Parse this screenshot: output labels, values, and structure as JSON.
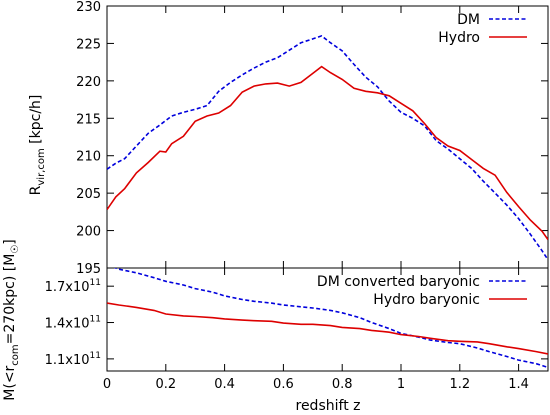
{
  "chart_data": [
    {
      "type": "line",
      "ylabel_main": "R",
      "ylabel_sub": "vir,com",
      "ylabel_unit": " [kpc/h]",
      "xlim": [
        0,
        1.5
      ],
      "ylim": [
        195,
        230
      ],
      "yticks": [
        195,
        200,
        205,
        210,
        215,
        220,
        225,
        230
      ],
      "yticklabels": [
        "195",
        "200",
        "205",
        "210",
        "215",
        "220",
        "225",
        "230"
      ],
      "legend_position": "top-right",
      "series": [
        {
          "name": "DM",
          "color": "#0000dd",
          "dash": "dashed",
          "x": [
            0,
            0.03,
            0.06,
            0.1,
            0.14,
            0.18,
            0.22,
            0.26,
            0.3,
            0.34,
            0.38,
            0.42,
            0.46,
            0.5,
            0.54,
            0.58,
            0.62,
            0.66,
            0.7,
            0.73,
            0.76,
            0.8,
            0.84,
            0.88,
            0.92,
            0.96,
            1.0,
            1.04,
            1.08,
            1.12,
            1.16,
            1.2,
            1.24,
            1.28,
            1.32,
            1.36,
            1.4,
            1.44,
            1.48,
            1.5
          ],
          "y": [
            208.2,
            209,
            209.6,
            211.3,
            213,
            214.1,
            215.3,
            215.8,
            216.2,
            216.7,
            218.6,
            219.8,
            220.8,
            221.7,
            222.5,
            223.1,
            224.1,
            225.1,
            225.6,
            226.0,
            225.1,
            224.0,
            222.2,
            220.5,
            219.2,
            217.3,
            215.8,
            215.0,
            214.0,
            212.0,
            210.9,
            209.6,
            208.3,
            206.6,
            205.0,
            203.4,
            201.6,
            199.5,
            197.3,
            196.1
          ]
        },
        {
          "name": "Hydro",
          "color": "#dd0000",
          "dash": "solid",
          "x": [
            0,
            0.03,
            0.06,
            0.1,
            0.14,
            0.18,
            0.2,
            0.22,
            0.26,
            0.3,
            0.34,
            0.38,
            0.42,
            0.46,
            0.5,
            0.54,
            0.58,
            0.62,
            0.66,
            0.7,
            0.73,
            0.76,
            0.8,
            0.84,
            0.88,
            0.92,
            0.96,
            1.0,
            1.04,
            1.08,
            1.12,
            1.16,
            1.2,
            1.24,
            1.28,
            1.32,
            1.36,
            1.4,
            1.44,
            1.48,
            1.5
          ],
          "y": [
            202.8,
            204.5,
            205.6,
            207.7,
            209.1,
            210.6,
            210.5,
            211.6,
            212.6,
            214.6,
            215.3,
            215.7,
            216.7,
            218.5,
            219.3,
            219.6,
            219.7,
            219.3,
            219.8,
            221.0,
            221.9,
            221.1,
            220.2,
            219.0,
            218.6,
            218.4,
            218.0,
            217.0,
            216.0,
            214.3,
            212.4,
            211.3,
            210.7,
            209.5,
            208.3,
            207.4,
            205.1,
            203.2,
            201.4,
            199.9,
            198.8
          ]
        }
      ]
    },
    {
      "type": "line",
      "ylabel_parts": [
        "M(<r",
        "com",
        "=270kpc) [M",
        "☉",
        "]"
      ],
      "xlabel": "redshift z",
      "xlim": [
        0,
        1.5
      ],
      "xticks": [
        0,
        0.2,
        0.4,
        0.6,
        0.8,
        1.0,
        1.2,
        1.4
      ],
      "xticklabels": [
        "0",
        "0.2",
        "0.4",
        "0.6",
        "0.8",
        "1",
        "1.2",
        "1.4"
      ],
      "ylim": [
        100000000000.0,
        185000000000.0
      ],
      "yticks": [
        110000000000.0,
        140000000000.0,
        170000000000.0
      ],
      "yticklabels_mantissa": [
        "1.1x10",
        "1.4x10",
        "1.7x10"
      ],
      "yticklabels_exponent": [
        "11",
        "11",
        "11"
      ],
      "legend_position": "top-right",
      "series": [
        {
          "name": "DM converted baryonic",
          "color": "#0000dd",
          "dash": "dashed",
          "x": [
            0,
            0.04,
            0.1,
            0.16,
            0.2,
            0.26,
            0.3,
            0.36,
            0.4,
            0.46,
            0.5,
            0.56,
            0.6,
            0.66,
            0.7,
            0.76,
            0.8,
            0.86,
            0.9,
            0.96,
            1.0,
            1.06,
            1.1,
            1.16,
            1.2,
            1.26,
            1.3,
            1.36,
            1.4,
            1.46,
            1.5
          ],
          "y": [
            188000000000.0,
            184000000000.0,
            181000000000.0,
            177000000000.0,
            174000000000.0,
            171000000000.0,
            168000000000.0,
            165000000000.0,
            162000000000.0,
            159000000000.0,
            157500000000.0,
            156000000000.0,
            154500000000.0,
            153000000000.0,
            152000000000.0,
            150000000000.0,
            148000000000.0,
            144000000000.0,
            140000000000.0,
            135000000000.0,
            131000000000.0,
            128000000000.0,
            125500000000.0,
            123500000000.0,
            122500000000.0,
            119000000000.0,
            116000000000.0,
            112000000000.0,
            109000000000.0,
            106000000000.0,
            103000000000.0
          ]
        },
        {
          "name": "Hydro baryonic",
          "color": "#dd0000",
          "dash": "solid",
          "x": [
            0,
            0.04,
            0.1,
            0.16,
            0.2,
            0.26,
            0.3,
            0.36,
            0.4,
            0.46,
            0.5,
            0.56,
            0.6,
            0.66,
            0.7,
            0.76,
            0.8,
            0.86,
            0.9,
            0.96,
            1.0,
            1.06,
            1.1,
            1.16,
            1.2,
            1.26,
            1.3,
            1.36,
            1.4,
            1.46,
            1.5
          ],
          "y": [
            156000000000.0,
            154500000000.0,
            152500000000.0,
            150000000000.0,
            147000000000.0,
            145500000000.0,
            145000000000.0,
            144000000000.0,
            143000000000.0,
            142000000000.0,
            141500000000.0,
            141000000000.0,
            139500000000.0,
            138500000000.0,
            138500000000.0,
            137500000000.0,
            136000000000.0,
            135000000000.0,
            133500000000.0,
            132000000000.0,
            130000000000.0,
            128500000000.0,
            127000000000.0,
            125000000000.0,
            124500000000.0,
            124000000000.0,
            122500000000.0,
            120000000000.0,
            118500000000.0,
            116000000000.0,
            114000000000.0
          ]
        }
      ]
    }
  ]
}
